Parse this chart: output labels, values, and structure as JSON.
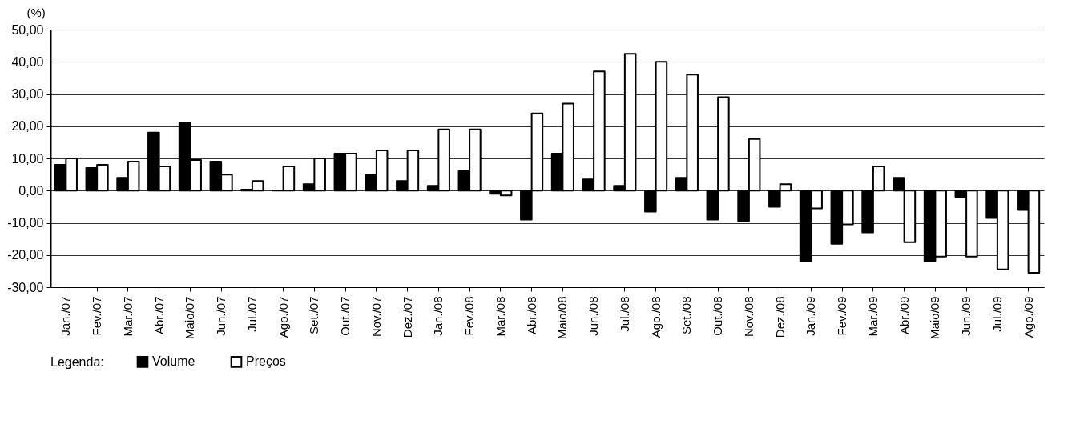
{
  "chart_data": {
    "type": "bar",
    "ylabel": "(%)",
    "legend_title": "Legenda:",
    "categories": [
      "Jan./07",
      "Fev./07",
      "Mar./07",
      "Abr./07",
      "Maio/07",
      "Jun./07",
      "Jul./07",
      "Ago./07",
      "Set./07",
      "Out./07",
      "Nov./07",
      "Dez./07",
      "Jan./08",
      "Fev./08",
      "Mar./08",
      "Abr./08",
      "Maio/08",
      "Jun./08",
      "Jul./08",
      "Ago./08",
      "Set./08",
      "Out./08",
      "Nov./08",
      "Dez./08",
      "Jan./09",
      "Fev./09",
      "Mar./09",
      "Abr./09",
      "Maio/09",
      "Jun./09",
      "Jul./09",
      "Ago./09"
    ],
    "series": [
      {
        "name": "Volume",
        "color": "#000000",
        "values": [
          8,
          7,
          4,
          18,
          21,
          9,
          0.3,
          0,
          2,
          11.5,
          5,
          3,
          1.5,
          6,
          -1,
          -9,
          11.5,
          3.5,
          1.5,
          -6.5,
          4,
          -9,
          -9.5,
          -5,
          -22,
          -16.5,
          -13,
          4,
          -22,
          -2,
          -8.5,
          -6
        ]
      },
      {
        "name": "Preços",
        "color": "#ffffff",
        "values": [
          10,
          8,
          9,
          7.5,
          9.5,
          5,
          3,
          7.5,
          10,
          11.5,
          12.5,
          12.5,
          19,
          19,
          -1.5,
          24,
          27,
          37,
          42.5,
          40,
          36,
          29,
          16,
          2,
          -5.5,
          -10.5,
          7.5,
          -16,
          -20.5,
          -20.5,
          -24.5,
          -25.5
        ]
      }
    ],
    "ylim": [
      -30,
      50
    ],
    "yticks": [
      {
        "value": -30,
        "label": "-30,00"
      },
      {
        "value": -20,
        "label": "-20,00"
      },
      {
        "value": -10,
        "label": "-10,00"
      },
      {
        "value": 0,
        "label": "0,00"
      },
      {
        "value": 10,
        "label": "10,00"
      },
      {
        "value": 20,
        "label": "20,00"
      },
      {
        "value": 30,
        "label": "30,00"
      },
      {
        "value": 40,
        "label": "40,00"
      },
      {
        "value": 50,
        "label": "50,00"
      }
    ],
    "grid": "y",
    "legend": "bottom"
  }
}
